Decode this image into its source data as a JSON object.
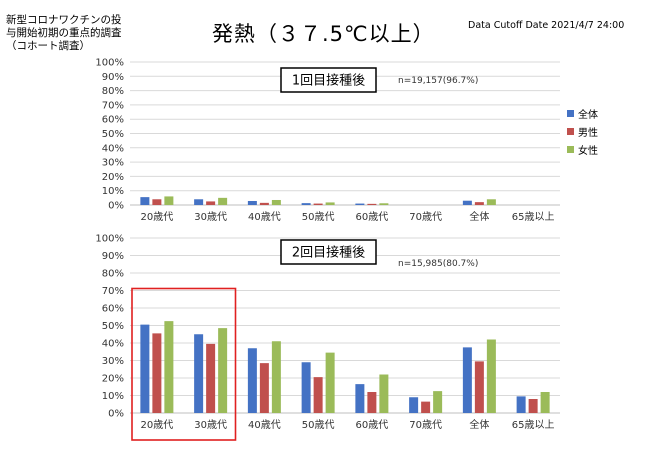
{
  "page": {
    "heading_lines": [
      "新型コロナワクチンの投",
      "与開始初期の重点的調査",
      "（コホート調査）"
    ],
    "title": "発熱（３７.5℃以上）",
    "cutoff": "Data Cutoff Date 2021/4/7 24:00"
  },
  "chart_data": [
    {
      "type": "bar",
      "label": "1回目接種後",
      "note": "n=19,157(96.7%)",
      "categories": [
        "20歳代",
        "30歳代",
        "40歳代",
        "50歳代",
        "60歳代",
        "70歳代",
        "全体",
        "65歳以上"
      ],
      "series": [
        {
          "name": "全体",
          "color": "#4472c4",
          "values": [
            5.5,
            4.0,
            2.8,
            1.3,
            1.0,
            0,
            3.0,
            0
          ]
        },
        {
          "name": "男性",
          "color": "#c0504d",
          "values": [
            4.0,
            2.5,
            1.5,
            1.0,
            0.8,
            0,
            2.0,
            0
          ]
        },
        {
          "name": "女性",
          "color": "#9bbb59",
          "values": [
            6.0,
            5.0,
            3.5,
            1.8,
            1.2,
            0,
            4.0,
            0
          ]
        }
      ],
      "ylim": [
        0,
        100
      ],
      "yticks": [
        "0%",
        "10%",
        "20%",
        "30%",
        "40%",
        "50%",
        "60%",
        "70%",
        "80%",
        "90%",
        "100%"
      ],
      "legend_position": "right"
    },
    {
      "type": "bar",
      "label": "2回目接種後",
      "note": "n=15,985(80.7%)",
      "categories": [
        "20歳代",
        "30歳代",
        "40歳代",
        "50歳代",
        "60歳代",
        "70歳代",
        "全体",
        "65歳以上"
      ],
      "series": [
        {
          "name": "全体",
          "color": "#4472c4",
          "values": [
            50.5,
            45.0,
            37.0,
            29.0,
            16.5,
            9.0,
            37.5,
            9.5
          ]
        },
        {
          "name": "男性",
          "color": "#c0504d",
          "values": [
            45.5,
            39.5,
            28.5,
            20.5,
            12.0,
            6.5,
            29.5,
            8.0
          ]
        },
        {
          "name": "女性",
          "color": "#9bbb59",
          "values": [
            52.5,
            48.5,
            41.0,
            34.5,
            22.0,
            12.5,
            42.0,
            12.0
          ]
        }
      ],
      "ylim": [
        0,
        100
      ],
      "yticks": [
        "0%",
        "10%",
        "20%",
        "30%",
        "40%",
        "50%",
        "60%",
        "70%",
        "80%",
        "90%",
        "100%"
      ],
      "highlight_categories": [
        "20歳代",
        "30歳代"
      ],
      "highlight_color": "#e02020"
    }
  ]
}
